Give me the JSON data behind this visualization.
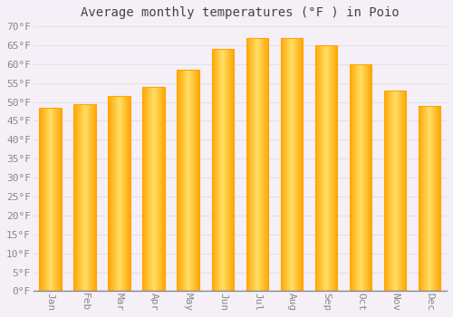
{
  "title": "Average monthly temperatures (°F ) in Poio",
  "months": [
    "Jan",
    "Feb",
    "Mar",
    "Apr",
    "May",
    "Jun",
    "Jul",
    "Aug",
    "Sep",
    "Oct",
    "Nov",
    "Dec"
  ],
  "values": [
    48.5,
    49.5,
    51.5,
    54,
    58.5,
    64,
    67,
    67,
    65,
    60,
    53,
    49
  ],
  "bar_color_center": "#FFD966",
  "bar_color_edge": "#FFA500",
  "background_color": "#F5F0F8",
  "plot_bg_color": "#F5F0F8",
  "grid_color": "#DDDDDD",
  "ylim": [
    0,
    70
  ],
  "title_fontsize": 10,
  "tick_fontsize": 8,
  "tick_color": "#888888",
  "title_color": "#444444",
  "font_family": "monospace"
}
